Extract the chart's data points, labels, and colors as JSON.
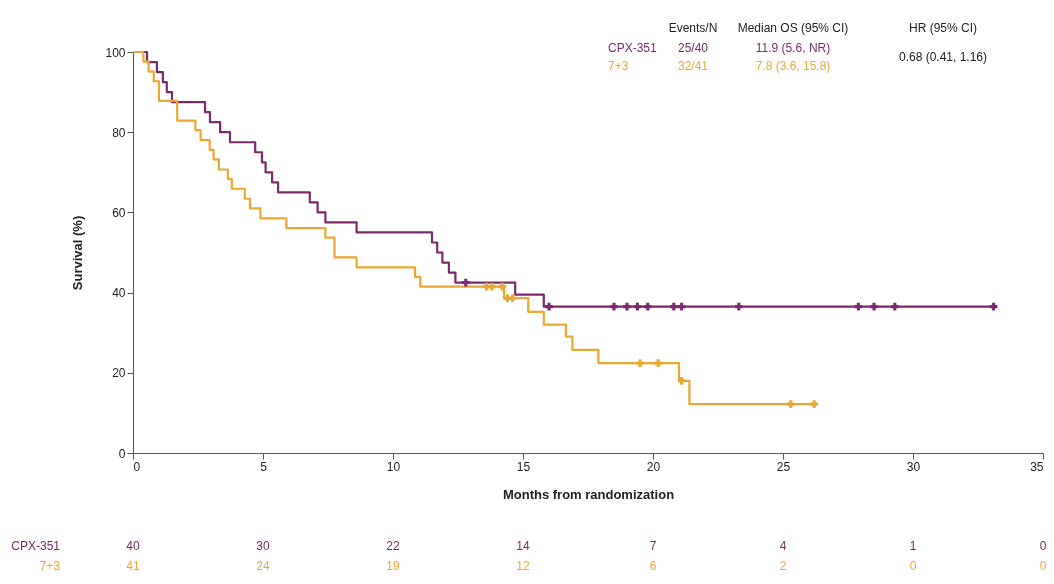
{
  "chart_data": {
    "type": "step",
    "xlabel": "Months from randomization",
    "ylabel": "Survival (%)",
    "xlim": [
      0,
      35
    ],
    "xticks": [
      0,
      5,
      10,
      15,
      20,
      25,
      30,
      35
    ],
    "ylim": [
      0,
      100
    ],
    "yticks": [
      0,
      20,
      40,
      60,
      80,
      100
    ],
    "grid": false,
    "legend": "top right",
    "series": [
      {
        "name": "CPX-351",
        "color": "#7b2a6b",
        "x": [
          0,
          0.54,
          0.92,
          1.15,
          1.3,
          1.5,
          2.77,
          2.96,
          3.35,
          3.73,
          4.7,
          4.96,
          5.1,
          5.35,
          5.58,
          6.8,
          7.1,
          7.4,
          8.6,
          11.5,
          11.7,
          11.9,
          12.15,
          12.4,
          14.7,
          15.8,
          33.1
        ],
        "values": [
          100,
          97.5,
          95,
          92.5,
          90,
          87.5,
          85,
          82.5,
          80,
          77.5,
          75,
          72.5,
          70,
          67.5,
          65,
          62.5,
          60,
          57.5,
          55,
          52.5,
          50,
          47.5,
          45,
          42.5,
          39.5,
          36.5,
          36.5
        ]
      },
      {
        "name": "7+3",
        "color": "#e8a832",
        "x": [
          0,
          0.4,
          0.6,
          0.8,
          1.0,
          1.7,
          2.4,
          2.6,
          2.95,
          3.1,
          3.3,
          3.65,
          3.8,
          4.3,
          4.5,
          4.9,
          5.9,
          7.4,
          7.75,
          8.6,
          10.85,
          11.05,
          14.27,
          15.2,
          15.8,
          16.65,
          16.9,
          17.9,
          21.0,
          21.4,
          26.2
        ],
        "values": [
          100,
          97.6,
          95.1,
          92.7,
          87.8,
          82.9,
          80.5,
          78.0,
          75.6,
          73.2,
          70.7,
          68.3,
          65.9,
          63.4,
          61.0,
          58.5,
          56.1,
          53.7,
          48.8,
          46.3,
          43.9,
          41.5,
          38.6,
          35.2,
          32.0,
          29.0,
          25.7,
          22.4,
          18.0,
          12.2,
          12.2
        ]
      },
      {
        "type": "scatter",
        "marker": "cross",
        "color": "#7b2a6b",
        "x": [
          12.8,
          16.0,
          18.5,
          19.0,
          19.4,
          19.8,
          20.8,
          21.1,
          23.3,
          27.9,
          28.5,
          29.3,
          33.1
        ],
        "values": [
          42.5,
          36.5,
          36.5,
          36.5,
          36.5,
          36.5,
          36.5,
          36.5,
          36.5,
          36.5,
          36.5,
          36.5,
          36.5
        ]
      },
      {
        "type": "scatter",
        "marker": "cross",
        "color": "#e8a832",
        "x": [
          13.6,
          13.8,
          14.2,
          14.4,
          14.6,
          19.5,
          20.2,
          21.1,
          25.3,
          26.2
        ],
        "values": [
          41.5,
          41.5,
          41.5,
          38.6,
          38.6,
          22.4,
          22.4,
          18.0,
          12.2,
          12.2
        ]
      }
    ],
    "annotations": [
      "Events/N",
      "Median OS (95% CI)",
      "HR (95% CI)",
      "25/40",
      "11.9 (5.6, NR)",
      "32/41",
      "7.8 (3.6, 15.8)",
      "0.68 (0.41, 1.16)",
      "CPX-351",
      "40",
      "30",
      "22",
      "14",
      "7",
      "4",
      "1",
      "0",
      "7+3",
      "41",
      "24",
      "19",
      "12",
      "6",
      "2",
      "0",
      "0"
    ]
  }
}
